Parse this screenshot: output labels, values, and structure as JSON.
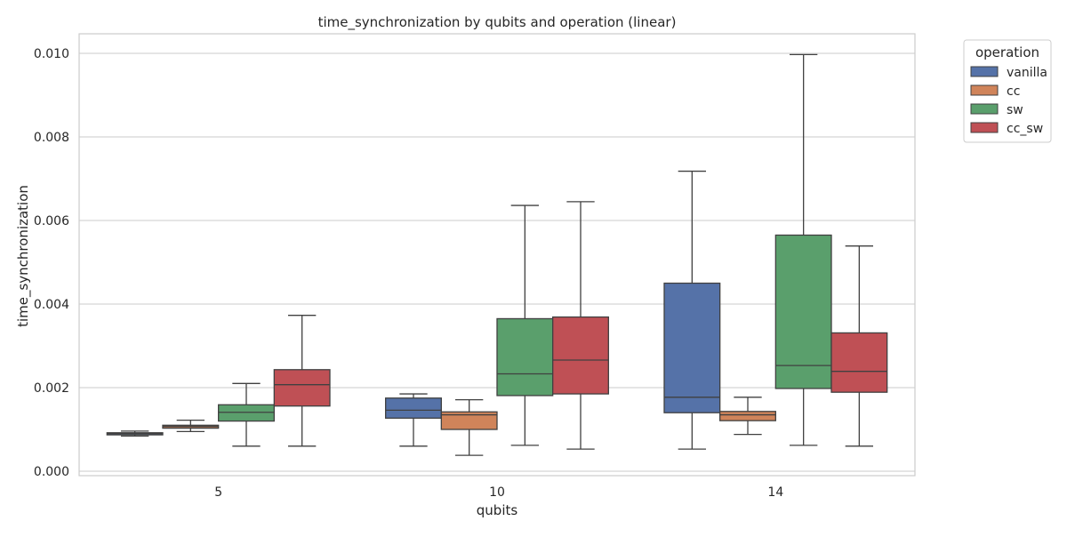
{
  "chart_data": {
    "type": "box",
    "title": "time_synchronization by qubits and operation (linear)",
    "xlabel": "qubits",
    "ylabel": "time_synchronization",
    "categories": [
      "5",
      "10",
      "14"
    ],
    "ylim": [
      0,
      0.0105
    ],
    "yticks": [
      0.0,
      0.002,
      0.004,
      0.006,
      0.008,
      0.01
    ],
    "ytick_labels": [
      "0.000",
      "0.002",
      "0.004",
      "0.006",
      "0.008",
      "0.010"
    ],
    "grid": "horizontal",
    "legend": {
      "title": "operation",
      "position": "outside-top-right"
    },
    "series": [
      {
        "name": "vanilla",
        "color": "#5572a8",
        "boxes": [
          {
            "whisker_low": 0.00084,
            "q1": 0.00087,
            "median": 0.0009,
            "q3": 0.00092,
            "whisker_high": 0.00096
          },
          {
            "whisker_low": 0.0006,
            "q1": 0.00127,
            "median": 0.00146,
            "q3": 0.00175,
            "whisker_high": 0.00185
          },
          {
            "whisker_low": 0.00053,
            "q1": 0.0014,
            "median": 0.00177,
            "q3": 0.0045,
            "whisker_high": 0.00718
          }
        ]
      },
      {
        "name": "cc",
        "color": "#d0845a",
        "boxes": [
          {
            "whisker_low": 0.00095,
            "q1": 0.00103,
            "median": 0.00107,
            "q3": 0.0011,
            "whisker_high": 0.00122
          },
          {
            "whisker_low": 0.00038,
            "q1": 0.001,
            "median": 0.00135,
            "q3": 0.00142,
            "whisker_high": 0.00171
          },
          {
            "whisker_low": 0.00088,
            "q1": 0.00121,
            "median": 0.00135,
            "q3": 0.00143,
            "whisker_high": 0.00177
          }
        ]
      },
      {
        "name": "sw",
        "color": "#5a9f6c",
        "boxes": [
          {
            "whisker_low": 0.0006,
            "q1": 0.0012,
            "median": 0.00141,
            "q3": 0.00159,
            "whisker_high": 0.0021
          },
          {
            "whisker_low": 0.00062,
            "q1": 0.00181,
            "median": 0.00233,
            "q3": 0.00365,
            "whisker_high": 0.00636
          },
          {
            "whisker_low": 0.00062,
            "q1": 0.00198,
            "median": 0.00253,
            "q3": 0.00565,
            "whisker_high": 0.00997
          }
        ]
      },
      {
        "name": "cc_sw",
        "color": "#bf5055",
        "boxes": [
          {
            "whisker_low": 0.0006,
            "q1": 0.00156,
            "median": 0.00207,
            "q3": 0.00243,
            "whisker_high": 0.00373
          },
          {
            "whisker_low": 0.00053,
            "q1": 0.00185,
            "median": 0.00266,
            "q3": 0.00369,
            "whisker_high": 0.00645
          },
          {
            "whisker_low": 0.0006,
            "q1": 0.00189,
            "median": 0.00239,
            "q3": 0.00331,
            "whisker_high": 0.00539
          }
        ]
      }
    ]
  }
}
